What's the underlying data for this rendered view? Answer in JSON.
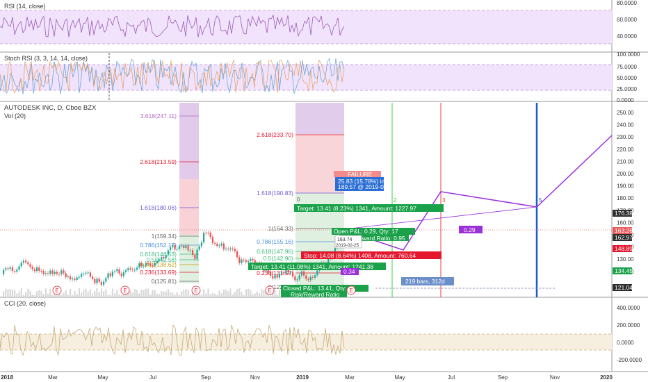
{
  "panes": {
    "rsi_label": "RSI (14, close)",
    "stoch_label": "Stoch RSI (3, 3, 14, 14, close)",
    "main_title": "AUTODESK INC, D, Cboe BZX",
    "vol_label": "Vol (20)",
    "cci_label": "CCI (20, close)"
  },
  "rsi_axis": [
    "80.0000",
    "60.0000",
    "40.0000"
  ],
  "stoch_axis": [
    "100.0000",
    "75.0000",
    "50.0000",
    "25.0000",
    "0.0000"
  ],
  "cci_axis": [
    "400.0000",
    "200.0000",
    "0.0000",
    "-200.0000"
  ],
  "price_axis": [
    "250.00",
    "240.00",
    "230.00",
    "220.00",
    "210.00",
    "200.00",
    "190.00",
    "180.00",
    "170.00",
    "160.00",
    "150.00",
    "140.00",
    "130.00",
    "120.00"
  ],
  "price_tags": [
    {
      "text": "176.38",
      "bg": "#2e2e2e"
    },
    {
      "text": "163.26",
      "bg": "#e95c5c"
    },
    {
      "text": "162.97",
      "bg": "#2e2e2e"
    },
    {
      "text": "148.89",
      "bg": "#e4172e"
    },
    {
      "text": "134.45",
      "bg": "#1aa14a"
    },
    {
      "text": "121.04",
      "bg": "#2e2e2e"
    }
  ],
  "time_axis": [
    "2018",
    "Mar",
    "May",
    "Jul",
    "Sep",
    "Nov",
    "2019",
    "Mar",
    "May",
    "Jul",
    "Sep",
    "Nov",
    "2020"
  ],
  "fib_left": [
    "3.618(247.11)",
    "2.618(213.59)",
    "1.618(180.06)",
    "1(159.34)",
    "0.786(152.17)",
    "0.618(146.53)",
    "0.5(142.58)",
    "0.382(138.62)",
    "0.236(133.69)",
    "0(125.81)"
  ],
  "fib_right": [
    "2.618(233.70)",
    "1.618(190.83)",
    "1(164.33)",
    "0.786(155.16)",
    "0.618(147.96)",
    "0.5(142.90)",
    "0.382(137.84)",
    "0.236(131.59)",
    "0(122.83)"
  ],
  "annotations": {
    "failure": "FAILURE",
    "move": "25.83 (15.78%) in",
    "move_date": "189.57 @ 2019-02-25",
    "target_upper": "Target: 13.41 (8.23%) 1341, Amount: 1227.97",
    "open_pnl": "Open P&L: 0.29, Qty: 17",
    "risk_reward_upper": "Risk/Reward Ratio: 0.95",
    "stop": "Stop: 14.08 (8.64%) 1408, Amount: 760.64",
    "target_lower": "Target: 13.41 (11.08%) 1341, Amount: 1241.38",
    "closed_pnl": "Closed P&L: 13.41, Qty: 18",
    "risk_reward_lower": "Risk/Reward Ratio",
    "bars": "219 bars, 312d",
    "price_box": "163.74",
    "date_box": "2019-02-25",
    "val_034": "0.34",
    "val_029": "0.29",
    "wave_0": "0",
    "wave_2": "2",
    "wave_3": "3",
    "wave_5": "5",
    "earnings": "E"
  },
  "colors": {
    "rsi_line": "#9b59b6",
    "rsi_band": "#f0e3fb",
    "cci_line": "#c8aa78",
    "cci_band": "#f6efe0",
    "candle_up": "#26a69a",
    "candle_down": "#ef5350",
    "projection": "#9b30d9",
    "blue_line": "#1e5bc6"
  }
}
